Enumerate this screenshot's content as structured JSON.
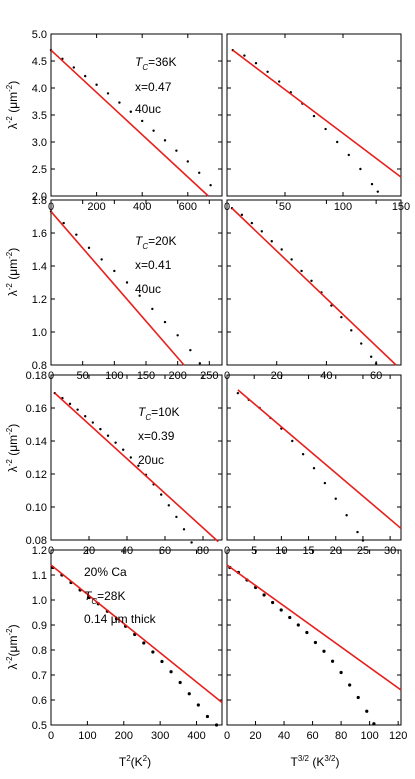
{
  "figure": {
    "ylabel_main": "λ",
    "ylabel_sup": "-2",
    "ylabel_unit": " (μm",
    "ylabel_unit_sup": "-2",
    "ylabel_close": ")",
    "ylabel_row4": "λ",
    "ylabel_row4_sup": "-2",
    "ylabel_row4_unit": "(μm",
    "ylabel_row4_unit_sup": "-2",
    "ylabel_row4_close": ")",
    "xlabel_left_base": "T",
    "xlabel_left_sup": "2",
    "xlabel_left_unit": "(K",
    "xlabel_left_unit_sup": "2",
    "xlabel_left_close": ")",
    "xlabel_right_base": "T",
    "xlabel_right_sup": "3/2",
    "xlabel_right_unit": " (K",
    "xlabel_right_unit_sup": "3/2",
    "xlabel_right_close": ")",
    "colors": {
      "fit_line": "#e8201c",
      "data": "#000000",
      "axis": "#000000"
    }
  },
  "annotations": [
    {
      "tc_base": "T",
      "tc_sub": "C",
      "tc_rest": "=36K",
      "line2": "x=0.47",
      "line3": "40uc"
    },
    {
      "tc_base": "T",
      "tc_sub": "C",
      "tc_rest": "=20K",
      "line2": "x=0.41",
      "line3": "40uc"
    },
    {
      "tc_base": "T",
      "tc_sub": "C",
      "tc_rest": "=10K",
      "line2": "x=0.39",
      "line3": "20uc"
    },
    {
      "line0": "20% Ca",
      "tc_base": "T",
      "tc_sub": "C",
      "tc_rest": "=28K",
      "line3": "0.14  μm thick"
    }
  ],
  "chart_data": [
    {
      "type": "scatter",
      "row": 1,
      "col": "left",
      "xlim": [
        0,
        750
      ],
      "ylim": [
        2.0,
        5.0
      ],
      "xticks": [
        "0",
        "200",
        "400",
        "600"
      ],
      "yticks": [
        "2.0",
        "2.5",
        "3.0",
        "3.5",
        "4.0",
        "4.5",
        "5.0"
      ],
      "series": [
        {
          "kind": "data",
          "x": [
            0,
            50,
            100,
            150,
            200,
            250,
            300,
            350,
            400,
            450,
            500,
            550,
            600,
            650,
            700
          ],
          "y": [
            4.7,
            4.54,
            4.38,
            4.22,
            4.06,
            3.9,
            3.73,
            3.56,
            3.39,
            3.21,
            3.03,
            2.84,
            2.64,
            2.43,
            2.2
          ]
        },
        {
          "kind": "fit",
          "x": [
            0,
            690
          ],
          "y": [
            4.7,
            2.0
          ]
        }
      ]
    },
    {
      "type": "scatter",
      "row": 1,
      "col": "right",
      "xlim": [
        0,
        150
      ],
      "ylim": [
        2.0,
        5.0
      ],
      "xticks": [
        "0",
        "50",
        "100",
        "150"
      ],
      "yticks": [
        "2.0",
        "2.5",
        "3.0",
        "3.5",
        "4.0",
        "4.5",
        "5.0"
      ],
      "series": [
        {
          "kind": "data",
          "x": [
            5,
            15,
            25,
            35,
            45,
            55,
            65,
            75,
            85,
            95,
            105,
            115,
            125,
            130
          ],
          "y": [
            4.7,
            4.6,
            4.46,
            4.3,
            4.12,
            3.92,
            3.71,
            3.48,
            3.24,
            3.0,
            2.76,
            2.5,
            2.22,
            2.08
          ]
        },
        {
          "kind": "fit",
          "x": [
            5,
            150
          ],
          "y": [
            4.7,
            2.35
          ]
        }
      ]
    },
    {
      "type": "scatter",
      "row": 2,
      "col": "left",
      "xlim": [
        0,
        270
      ],
      "ylim": [
        0.8,
        1.8
      ],
      "xticks": [
        "0",
        "50",
        "100",
        "150",
        "200",
        "250"
      ],
      "yticks": [
        "0.8",
        "1.0",
        "1.2",
        "1.4",
        "1.6",
        "1.8"
      ],
      "series": [
        {
          "kind": "data",
          "x": [
            0,
            20,
            40,
            60,
            80,
            100,
            120,
            140,
            160,
            180,
            200,
            220,
            235
          ],
          "y": [
            1.73,
            1.66,
            1.59,
            1.51,
            1.44,
            1.37,
            1.3,
            1.22,
            1.14,
            1.06,
            0.98,
            0.89,
            0.81
          ]
        },
        {
          "kind": "fit",
          "x": [
            0,
            210
          ],
          "y": [
            1.73,
            0.8
          ]
        }
      ]
    },
    {
      "type": "scatter",
      "row": 2,
      "col": "right",
      "xlim": [
        0,
        70
      ],
      "ylim": [
        0.8,
        1.8
      ],
      "xticks": [
        "0",
        "20",
        "40",
        "60"
      ],
      "yticks": [
        "0.8",
        "1.0",
        "1.2",
        "1.4",
        "1.6",
        "1.8"
      ],
      "series": [
        {
          "kind": "data",
          "x": [
            2,
            6,
            10,
            14,
            18,
            22,
            26,
            30,
            34,
            38,
            42,
            46,
            50,
            54,
            58,
            60
          ],
          "y": [
            1.75,
            1.71,
            1.66,
            1.61,
            1.55,
            1.5,
            1.44,
            1.37,
            1.31,
            1.24,
            1.16,
            1.09,
            1.01,
            0.93,
            0.85,
            0.81
          ]
        },
        {
          "kind": "fit",
          "x": [
            2,
            68
          ],
          "y": [
            1.75,
            0.8
          ]
        }
      ]
    },
    {
      "type": "scatter",
      "row": 3,
      "col": "left",
      "xlim": [
        0,
        90
      ],
      "ylim": [
        0.08,
        0.18
      ],
      "xticks": [
        "0",
        "20",
        "40",
        "60",
        "80"
      ],
      "yticks": [
        "0.08",
        "0.10",
        "0.12",
        "0.14",
        "0.16",
        "0.18"
      ],
      "series": [
        {
          "kind": "data",
          "x": [
            2,
            6,
            10,
            14,
            18,
            22,
            26,
            30,
            34,
            38,
            42,
            46,
            50,
            54,
            58,
            62,
            66,
            70,
            74
          ],
          "y": [
            0.169,
            0.166,
            0.1625,
            0.159,
            0.155,
            0.1512,
            0.1472,
            0.1432,
            0.139,
            0.1347,
            0.13,
            0.125,
            0.1195,
            0.1137,
            0.1075,
            0.101,
            0.094,
            0.0865,
            0.0785
          ]
        },
        {
          "kind": "fit",
          "x": [
            2,
            88
          ],
          "y": [
            0.169,
            0.079
          ]
        }
      ]
    },
    {
      "type": "scatter",
      "row": 3,
      "col": "right",
      "xlim": [
        0,
        32
      ],
      "ylim": [
        0.08,
        0.18
      ],
      "xticks": [
        "0",
        "5",
        "10",
        "15",
        "20",
        "25",
        "30"
      ],
      "yticks": [
        "0.08",
        "0.10",
        "0.12",
        "0.14",
        "0.16",
        "0.18"
      ],
      "series": [
        {
          "kind": "data",
          "x": [
            2,
            4,
            6,
            8,
            10,
            12,
            14,
            16,
            18,
            20,
            22,
            24,
            25
          ],
          "y": [
            0.169,
            0.165,
            0.16,
            0.154,
            0.1475,
            0.14,
            0.132,
            0.1235,
            0.1145,
            0.105,
            0.095,
            0.0848,
            0.0797
          ]
        },
        {
          "kind": "fit",
          "x": [
            2,
            32
          ],
          "y": [
            0.171,
            0.087
          ]
        }
      ]
    },
    {
      "type": "scatter",
      "row": 4,
      "col": "left",
      "xlim": [
        0,
        470
      ],
      "ylim": [
        0.5,
        1.2
      ],
      "xticks": [
        "0",
        "100",
        "200",
        "300",
        "400"
      ],
      "yticks": [
        "0.5",
        "0.6",
        "0.7",
        "0.8",
        "0.9",
        "1.0",
        "1.1",
        "1.2"
      ],
      "series": [
        {
          "kind": "data",
          "x": [
            5,
            30,
            55,
            80,
            105,
            130,
            155,
            180,
            205,
            230,
            255,
            280,
            305,
            330,
            355,
            380,
            405,
            430,
            455
          ],
          "y": [
            1.13,
            1.1,
            1.07,
            1.04,
            1.01,
            0.985,
            0.955,
            0.925,
            0.895,
            0.862,
            0.828,
            0.792,
            0.754,
            0.713,
            0.67,
            0.625,
            0.58,
            0.534,
            0.5
          ]
        },
        {
          "kind": "fit",
          "x": [
            0,
            470
          ],
          "y": [
            1.14,
            0.59
          ]
        }
      ]
    },
    {
      "type": "scatter",
      "row": 4,
      "col": "right",
      "xlim": [
        0,
        122
      ],
      "ylim": [
        0.5,
        1.2
      ],
      "xticks": [
        "0",
        "20",
        "40",
        "60",
        "80",
        "100",
        "120"
      ],
      "yticks": [
        "0.5",
        "0.6",
        "0.7",
        "0.8",
        "0.9",
        "1.0",
        "1.1",
        "1.2"
      ],
      "series": [
        {
          "kind": "data",
          "x": [
            2,
            8,
            14,
            20,
            26,
            32,
            38,
            44,
            50,
            56,
            62,
            68,
            74,
            80,
            86,
            92,
            98,
            103
          ],
          "y": [
            1.13,
            1.11,
            1.08,
            1.05,
            1.02,
            0.99,
            0.96,
            0.93,
            0.9,
            0.87,
            0.83,
            0.795,
            0.755,
            0.71,
            0.66,
            0.61,
            0.555,
            0.505
          ]
        },
        {
          "kind": "fit",
          "x": [
            0,
            122
          ],
          "y": [
            1.14,
            0.64
          ]
        }
      ]
    }
  ]
}
